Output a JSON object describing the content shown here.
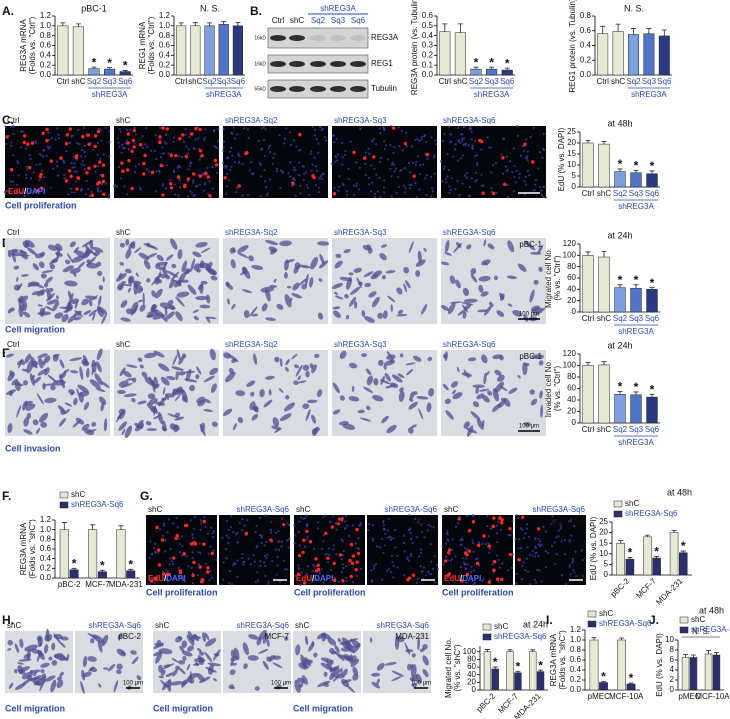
{
  "chart_data": [
    {
      "type": "bar",
      "title": "pBC-1",
      "ylabel": [
        "REG3A mRNA",
        "(Folds vs. \"Ctrl\")"
      ],
      "categories": [
        "Ctrl",
        "shC",
        "Sq2",
        "Sq3",
        "Sq6"
      ],
      "values": [
        1,
        0.98,
        0.13,
        0.12,
        0.07
      ],
      "errors": [
        0.06,
        0.06,
        0.03,
        0.03,
        0.02
      ],
      "marks": [
        null,
        null,
        "*",
        "*",
        "*"
      ],
      "colors": [
        "#e6ead4",
        "#e6ead4",
        "#7ea0e0",
        "#4f74c8",
        "#2b3a80"
      ],
      "group_label": "shREG3A",
      "ylim": [
        0,
        1.2
      ],
      "yticks": [
        {
          "value": 0,
          "label": "0.0"
        },
        0.2,
        0.4,
        0.6,
        0.8,
        {
          "value": 1,
          "label": "1.0"
        },
        1.2
      ]
    },
    {
      "type": "bar",
      "title": "N. S.",
      "ylabel": [
        "REG1 mRNA",
        "(Folds vs. \"Ctrl\")"
      ],
      "categories": [
        "Ctrl",
        "shC",
        "Sq2",
        "Sq3",
        "Sq6"
      ],
      "values": [
        1,
        1.0,
        1.0,
        1.03,
        1.0
      ],
      "errors": [
        0.06,
        0.07,
        0.06,
        0.06,
        0.07
      ],
      "colors": [
        "#e6ead4",
        "#e6ead4",
        "#7ea0e0",
        "#4f74c8",
        "#2b3a80"
      ],
      "group_label": "shREG3A",
      "ylim": [
        0,
        1.2
      ],
      "yticks": [
        {
          "value": 0,
          "label": "0.0"
        },
        0.2,
        0.4,
        0.6,
        0.8,
        {
          "value": 1,
          "label": "1.0"
        },
        1.2
      ]
    },
    {
      "type": "bar",
      "ylabel": [
        "REG3A protein (vs. Tubulin)"
      ],
      "categories": [
        "Ctrl",
        "shC",
        "Sq2",
        "Sq3",
        "Sq6"
      ],
      "values": [
        0.44,
        0.43,
        0.06,
        0.06,
        0.05
      ],
      "errors": [
        0.08,
        0.09,
        0.02,
        0.02,
        0.02
      ],
      "marks": [
        null,
        null,
        "*",
        "*",
        "*"
      ],
      "colors": [
        "#e6ead4",
        "#e6ead4",
        "#7ea0e0",
        "#4f74c8",
        "#2b3a80"
      ],
      "group_label": "shREG3A",
      "ylim": [
        0,
        0.6
      ],
      "yticks": [
        {
          "value": 0,
          "label": "0.0"
        },
        0.1,
        0.2,
        0.3,
        0.4,
        0.5,
        0.6
      ]
    },
    {
      "type": "bar",
      "title": "N. S.",
      "ylabel": [
        "REG1 protein (vs. Tubulin)"
      ],
      "categories": [
        "Ctrl",
        "shC",
        "Sq2",
        "Sq3",
        "Sq6"
      ],
      "values": [
        0.56,
        0.59,
        0.55,
        0.56,
        0.53
      ],
      "errors": [
        0.1,
        0.1,
        0.08,
        0.07,
        0.08
      ],
      "colors": [
        "#e6ead4",
        "#e6ead4",
        "#7ea0e0",
        "#4f74c8",
        "#2b3a80"
      ],
      "group_label": "shREG3A",
      "ylim": [
        0,
        0.8
      ],
      "yticks": [
        {
          "value": 0,
          "label": "0.0"
        },
        0.2,
        0.4,
        0.6,
        0.8
      ]
    },
    {
      "type": "bar",
      "title": "at 48h",
      "ylabel": [
        "EdU (% vs. DAPI)"
      ],
      "categories": [
        "Ctrl",
        "shC",
        "Sq2",
        "Sq3",
        "Sq6"
      ],
      "values": [
        20,
        19.5,
        7,
        6.5,
        6
      ],
      "errors": [
        1.2,
        1.1,
        1.2,
        1,
        1.3
      ],
      "marks": [
        null,
        null,
        "*",
        "*",
        "*"
      ],
      "colors": [
        "#e6ead4",
        "#e6ead4",
        "#7ea0e0",
        "#4f74c8",
        "#2b3a80"
      ],
      "group_label": "shREG3A",
      "ylim": [
        0,
        25
      ],
      "yticks": [
        0,
        5,
        10,
        15,
        20,
        25
      ]
    },
    {
      "type": "bar",
      "title": "at 24h",
      "ylabel": [
        "Migrated cell No.",
        "(% vs. \"Ctrl\")"
      ],
      "categories": [
        "Ctrl",
        "shC",
        "Sq2",
        "Sq3",
        "Sq6"
      ],
      "values": [
        100,
        97,
        43,
        42,
        40
      ],
      "errors": [
        6,
        10,
        5,
        6,
        3
      ],
      "marks": [
        null,
        null,
        "*",
        "*",
        "*"
      ],
      "colors": [
        "#e6ead4",
        "#e6ead4",
        "#7ea0e0",
        "#4f74c8",
        "#2b3a80"
      ],
      "group_label": "shREG3A",
      "ylim": [
        0,
        120
      ],
      "yticks": [
        0,
        20,
        40,
        60,
        80,
        100,
        120
      ]
    },
    {
      "type": "bar",
      "title": "at 24h",
      "ylabel": [
        "Invaded cell No.",
        "(% vs. \"Ctrl\")"
      ],
      "categories": [
        "Ctrl",
        "shC",
        "Sq2",
        "Sq3",
        "Sq6"
      ],
      "values": [
        100,
        101,
        50,
        49,
        45
      ],
      "errors": [
        5,
        6,
        5,
        5,
        5
      ],
      "marks": [
        null,
        null,
        "*",
        "*",
        "*"
      ],
      "colors": [
        "#e6ead4",
        "#e6ead4",
        "#7ea0e0",
        "#4f74c8",
        "#2b3a80"
      ],
      "group_label": "shREG3A",
      "ylim": [
        0,
        120
      ],
      "yticks": [
        0,
        20,
        40,
        60,
        80,
        100,
        120
      ]
    },
    {
      "type": "bar",
      "ylabel": [
        "REG3A mRNA",
        "(Folds vs. \"shC\")"
      ],
      "categories": [
        "pBC-2",
        "MCF-7",
        "MDA-231"
      ],
      "series": [
        {
          "name": "shC",
          "color": "#e6ead4",
          "values": [
            1,
            1,
            1
          ],
          "errors": [
            0.15,
            0.1,
            0.08
          ]
        },
        {
          "name": "shREG3A-Sq6",
          "color": "#2b2f6e",
          "values": [
            0.17,
            0.13,
            0.15
          ],
          "errors": [
            0.03,
            0.03,
            0.03
          ],
          "marks": [
            "*",
            "*",
            "*"
          ]
        }
      ],
      "ylim": [
        0,
        1.2
      ],
      "yticks": [
        {
          "value": 0,
          "label": "0.0"
        },
        0.2,
        0.4,
        0.6,
        0.8,
        {
          "value": 1,
          "label": "1.0"
        },
        1.2
      ]
    },
    {
      "type": "bar",
      "title": "at 48h",
      "ylabel": [
        "EdU (% vs. DAPI)"
      ],
      "categories": [
        "pBC-2",
        "MCF-7",
        "MDA-231"
      ],
      "series": [
        {
          "name": "shC",
          "color": "#e6ead4",
          "values": [
            15,
            18,
            20
          ],
          "errors": [
            1.2,
            0.8,
            1
          ]
        },
        {
          "name": "shREG3A-Sq6",
          "color": "#2b2f6e",
          "values": [
            7.5,
            8,
            10.5
          ],
          "errors": [
            0.8,
            0.8,
            0.8
          ],
          "marks": [
            "*",
            "*",
            "*"
          ]
        }
      ],
      "ylim": [
        0,
        25
      ],
      "yticks": [
        0,
        5,
        10,
        15,
        20,
        25
      ]
    },
    {
      "type": "bar",
      "title": "at 24h",
      "ylabel": [
        "Migrated cell No.",
        "(% vs. \"shC\")"
      ],
      "categories": [
        "pBC-2",
        "MCF-7",
        "MDA-231"
      ],
      "series": [
        {
          "name": "shC",
          "color": "#e6ead4",
          "values": [
            100,
            100,
            100
          ],
          "errors": [
            6,
            5,
            5
          ]
        },
        {
          "name": "shREG3A-Sq6",
          "color": "#2b2f6e",
          "values": [
            55,
            45,
            48
          ],
          "errors": [
            5,
            4,
            4
          ],
          "marks": [
            "*",
            "*",
            "*"
          ]
        }
      ],
      "ylim": [
        0,
        115
      ],
      "yticks": [
        0,
        20,
        40,
        60,
        80,
        100
      ]
    },
    {
      "type": "bar",
      "ylabel": [
        "REG3A mRNA",
        "(Folds vs. \"shC\")"
      ],
      "categories": [
        "pMEC",
        "MCF-10A"
      ],
      "series": [
        {
          "name": "shC",
          "color": "#e6ead4",
          "values": [
            1,
            1
          ],
          "errors": [
            0.05,
            0.04
          ]
        },
        {
          "name": "shREG3A-Sq6",
          "color": "#2b2f6e",
          "values": [
            0.15,
            0.12
          ],
          "errors": [
            0.02,
            0.02
          ],
          "marks": [
            "*",
            "*"
          ]
        }
      ],
      "ylim": [
        0,
        1.2
      ],
      "yticks": [
        {
          "value": 0,
          "label": "0.0"
        },
        0.2,
        0.4,
        0.6,
        0.8,
        {
          "value": 1,
          "label": "1.0"
        },
        1.2
      ]
    },
    {
      "type": "bar",
      "title": "at 48h",
      "note": "N. S.",
      "ylabel": [
        "EdU (% vs. DAPI)"
      ],
      "categories": [
        "pMEC",
        "MCF-10A"
      ],
      "series": [
        {
          "name": "shC",
          "color": "#e6ead4",
          "values": [
            6.5,
            7.2
          ],
          "errors": [
            0.6,
            0.7
          ]
        },
        {
          "name": "shREG3A-Sq6",
          "color": "#2b2f6e",
          "values": [
            6.5,
            7.0
          ],
          "errors": [
            0.5,
            0.5
          ]
        }
      ],
      "ylim": [
        0,
        10
      ],
      "yticks": [
        0,
        2,
        4,
        6,
        8,
        10
      ]
    }
  ],
  "figure": {
    "panel_letters": [
      "A.",
      "B.",
      "C.",
      "D.",
      "E.",
      "F.",
      "G.",
      "H.",
      "I.",
      "J."
    ],
    "blot": {
      "header": "shREG3A",
      "lanes": [
        "Ctrl",
        "shC",
        "Sq2",
        "Sq3",
        "Sq6"
      ],
      "markers": [
        "16kD",
        "16kD",
        "55kD"
      ],
      "proteins": [
        "REG3A",
        "REG1",
        "Tubulin"
      ]
    },
    "C": {
      "labels": [
        "Ctrl",
        "shC",
        "shREG3A-Sq2",
        "shREG3A-Sq3",
        "shREG3A-Sq6"
      ],
      "tag": "pBC-1",
      "stain": [
        "EdU",
        "/",
        "DAPI"
      ],
      "scale": "100 μm",
      "caption": "Cell proliferation"
    },
    "D": {
      "labels": [
        "Ctrl",
        "shC",
        "shREG3A-Sq2",
        "shREG3A-Sq3",
        "shREG3A-Sq6"
      ],
      "tag": "pBC-1",
      "scale": "100 μm",
      "caption": "Cell migration"
    },
    "E": {
      "labels": [
        "Ctrl",
        "shC",
        "shREG3A-Sq2",
        "shREG3A-Sq3",
        "shREG3A-Sq6"
      ],
      "tag": "pBC-1",
      "scale": "100 μm",
      "caption": "Cell invasion"
    },
    "G": {
      "stain": [
        "EdU",
        "/",
        "DAPI"
      ],
      "scale": "100 μm",
      "groups": [
        {
          "labels": [
            "shC",
            "shREG3A-Sq6"
          ],
          "tag": "pBC-2",
          "caption": "Cell proliferation"
        },
        {
          "labels": [
            "shC",
            "shREG3A-Sq6"
          ],
          "tag": "MCF-7",
          "caption": "Cell proliferation"
        },
        {
          "labels": [
            "shC",
            "shREG3A-Sq6"
          ],
          "tag": "MDA-231",
          "caption": "Cell proliferation"
        }
      ]
    },
    "H": {
      "scale": "100 μm",
      "groups": [
        {
          "labels": [
            "shC",
            "shREG3A-Sq6"
          ],
          "tag": "pBC-2",
          "caption": "Cell migration"
        },
        {
          "labels": [
            "shC",
            "shREG3A-Sq6"
          ],
          "tag": "MCF-7",
          "caption": "Cell migration"
        },
        {
          "labels": [
            "shC",
            "shREG3A-Sq6"
          ],
          "tag": "MDA-231",
          "caption": "Cell migration"
        }
      ]
    }
  }
}
